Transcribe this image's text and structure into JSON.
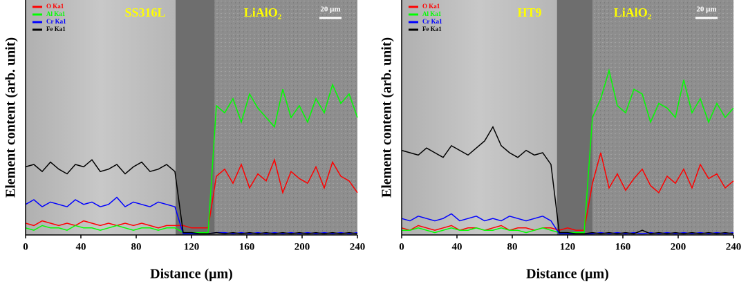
{
  "chart_data": [
    {
      "type": "line",
      "ylabel": "Element content (arb. unit)",
      "xlabel": "Distance (μm)",
      "annotations": [
        "SS316L",
        "LiAlO₂",
        "20 μm"
      ],
      "xlim": [
        0,
        240
      ],
      "xticks": [
        0,
        40,
        80,
        120,
        160,
        200,
        240
      ],
      "ylim": [
        0,
        100
      ],
      "x": [
        0,
        6,
        12,
        18,
        24,
        30,
        36,
        42,
        48,
        54,
        60,
        66,
        72,
        78,
        84,
        90,
        96,
        102,
        108,
        114,
        120,
        126,
        132,
        138,
        144,
        150,
        156,
        162,
        168,
        174,
        180,
        186,
        192,
        198,
        204,
        210,
        216,
        222,
        228,
        234,
        240
      ],
      "series": [
        {
          "name": "O Ka1",
          "color": "#ff0000",
          "values": [
            5,
            4,
            6,
            5,
            4,
            5,
            4,
            6,
            5,
            4,
            5,
            4,
            5,
            4,
            5,
            4,
            3,
            4,
            4,
            4,
            3,
            3,
            3,
            25,
            28,
            22,
            30,
            20,
            26,
            23,
            32,
            18,
            27,
            24,
            22,
            29,
            20,
            31,
            25,
            23,
            18
          ]
        },
        {
          "name": "Al Ka1",
          "color": "#00ff00",
          "values": [
            3,
            2,
            4,
            3,
            3,
            2,
            4,
            3,
            3,
            2,
            3,
            4,
            3,
            2,
            3,
            3,
            2,
            3,
            3,
            1,
            1,
            1,
            1,
            55,
            52,
            58,
            48,
            60,
            54,
            50,
            46,
            62,
            50,
            55,
            48,
            58,
            52,
            64,
            56,
            60,
            50
          ]
        },
        {
          "name": "Cr Ka1",
          "color": "#0000ff",
          "values": [
            13,
            15,
            12,
            14,
            13,
            12,
            15,
            13,
            14,
            12,
            13,
            16,
            12,
            14,
            13,
            12,
            14,
            13,
            12,
            0.5,
            0.5,
            0.5,
            0.5,
            1,
            1,
            0.5,
            1,
            0.5,
            1,
            0.5,
            1,
            0.5,
            1,
            0.5,
            1,
            0.5,
            1,
            0.5,
            1,
            0.5,
            1
          ]
        },
        {
          "name": "Fe Ka1",
          "color": "#000000",
          "values": [
            29,
            30,
            27,
            31,
            28,
            26,
            30,
            29,
            32,
            27,
            28,
            30,
            26,
            29,
            31,
            27,
            28,
            30,
            27,
            1,
            1,
            0.5,
            0.5,
            1,
            0.5,
            1,
            0.5,
            1,
            0.5,
            1,
            0.5,
            1,
            0.5,
            1,
            0.5,
            1,
            0.5,
            1,
            0.5,
            1,
            0.5
          ]
        }
      ]
    },
    {
      "type": "line",
      "ylabel": "Element content (arb. unit)",
      "xlabel": "Distance (μm)",
      "annotations": [
        "HT9",
        "LiAlO₂",
        "20 μm"
      ],
      "xlim": [
        0,
        240
      ],
      "xticks": [
        0,
        40,
        80,
        120,
        160,
        200,
        240
      ],
      "ylim": [
        0,
        100
      ],
      "x": [
        0,
        6,
        12,
        18,
        24,
        30,
        36,
        42,
        48,
        54,
        60,
        66,
        72,
        78,
        84,
        90,
        96,
        102,
        108,
        114,
        120,
        126,
        132,
        138,
        144,
        150,
        156,
        162,
        168,
        174,
        180,
        186,
        192,
        198,
        204,
        210,
        216,
        222,
        228,
        234,
        240
      ],
      "series": [
        {
          "name": "O Ka1",
          "color": "#ff0000",
          "values": [
            3,
            2,
            4,
            3,
            2,
            3,
            4,
            2,
            3,
            3,
            2,
            3,
            4,
            2,
            3,
            3,
            2,
            3,
            3,
            2,
            3,
            2,
            2,
            22,
            35,
            20,
            26,
            19,
            24,
            28,
            21,
            18,
            25,
            22,
            28,
            20,
            30,
            24,
            26,
            20,
            23
          ]
        },
        {
          "name": "Al Ka1",
          "color": "#00ff00",
          "values": [
            2,
            2,
            3,
            2,
            1,
            2,
            3,
            2,
            2,
            3,
            2,
            2,
            3,
            2,
            2,
            1,
            2,
            3,
            2,
            1,
            1,
            1,
            1,
            50,
            58,
            70,
            55,
            52,
            62,
            60,
            48,
            56,
            54,
            50,
            66,
            52,
            58,
            48,
            56,
            50,
            54
          ]
        },
        {
          "name": "Cr Ka1",
          "color": "#0000ff",
          "values": [
            7,
            6,
            8,
            7,
            6,
            7,
            9,
            6,
            7,
            8,
            6,
            7,
            6,
            8,
            7,
            6,
            7,
            8,
            6,
            0.5,
            0.5,
            0.5,
            0.5,
            0.5,
            1,
            0.5,
            1,
            0.5,
            1,
            0.5,
            1,
            0.5,
            1,
            0.5,
            1,
            0.5,
            1,
            0.5,
            1,
            0.5,
            1
          ]
        },
        {
          "name": "Fe Ka1",
          "color": "#000000",
          "values": [
            36,
            35,
            34,
            37,
            35,
            33,
            38,
            36,
            34,
            37,
            40,
            46,
            38,
            35,
            33,
            36,
            34,
            35,
            30,
            1,
            1,
            0.5,
            0.5,
            1,
            0.5,
            1,
            0.5,
            1,
            0.5,
            2,
            0.5,
            1,
            0.5,
            1,
            0.5,
            1,
            0.5,
            1,
            0.5,
            1,
            0.5
          ]
        }
      ]
    }
  ]
}
